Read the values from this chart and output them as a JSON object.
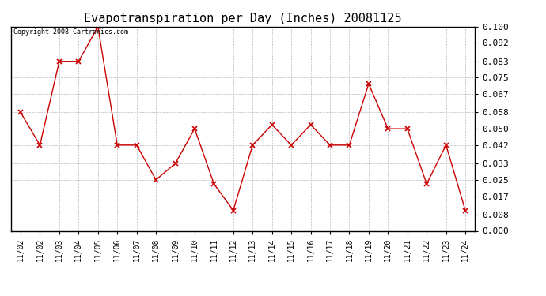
{
  "title": "Evapotranspiration per Day (Inches) 20081125",
  "copyright_text": "Copyright 2008 Cartronics.com",
  "x_labels": [
    "11/02",
    "11/02",
    "11/03",
    "11/04",
    "11/05",
    "11/06",
    "11/07",
    "11/08",
    "11/09",
    "11/10",
    "11/11",
    "11/12",
    "11/13",
    "11/14",
    "11/15",
    "11/16",
    "11/17",
    "11/18",
    "11/19",
    "11/20",
    "11/21",
    "11/22",
    "11/23",
    "11/24"
  ],
  "y_values": [
    0.058,
    0.042,
    0.083,
    0.083,
    0.1,
    0.042,
    0.042,
    0.025,
    0.033,
    0.05,
    0.023,
    0.01,
    0.042,
    0.052,
    0.042,
    0.052,
    0.042,
    0.042,
    0.072,
    0.05,
    0.05,
    0.023,
    0.042,
    0.01
  ],
  "line_color": "#cc0000",
  "marker": "x",
  "marker_size": 4,
  "marker_linewidth": 1.2,
  "line_width": 1.0,
  "ylim": [
    0.0,
    0.1
  ],
  "ytick_values": [
    0.0,
    0.008,
    0.017,
    0.025,
    0.033,
    0.042,
    0.05,
    0.058,
    0.067,
    0.075,
    0.083,
    0.092,
    0.1
  ],
  "background_color": "#ffffff",
  "grid_color": "#bbbbbb",
  "title_fontsize": 11,
  "copyright_fontsize": 6,
  "tick_fontsize": 7,
  "ytick_fontsize": 8
}
